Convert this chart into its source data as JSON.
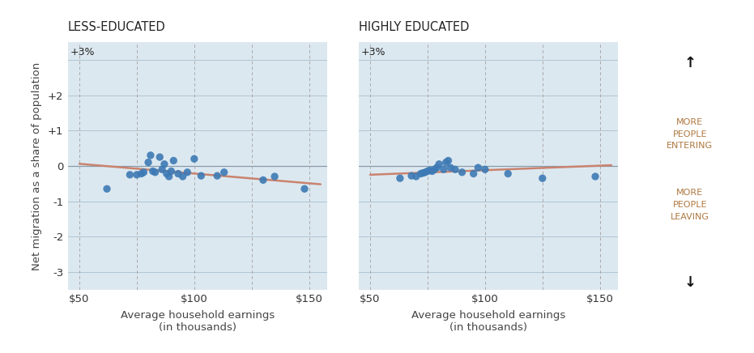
{
  "left_title": "LESS-EDUCATED",
  "right_title": "HIGHLY EDUCATED",
  "xlabel": "Average household earnings\n(in thousands)",
  "ylabel": "Net migration as a share of population",
  "ylim": [
    -3.5,
    3.5
  ],
  "xlim": [
    45,
    158
  ],
  "top_label": "+3%",
  "bg_color": "#dce8f0",
  "dot_color": "#3d7ab5",
  "line_color": "#c9836e",
  "annotation_color": "#b07840",
  "less_edu_x": [
    62,
    72,
    75,
    77,
    78,
    80,
    81,
    82,
    83,
    85,
    86,
    87,
    88,
    89,
    90,
    91,
    93,
    95,
    97,
    100,
    103,
    110,
    113,
    130,
    135,
    148
  ],
  "less_edu_y": [
    -0.65,
    -0.25,
    -0.25,
    -0.22,
    -0.18,
    0.1,
    0.3,
    -0.15,
    -0.18,
    0.25,
    -0.1,
    0.05,
    -0.22,
    -0.3,
    -0.15,
    0.15,
    -0.22,
    -0.3,
    -0.18,
    0.2,
    -0.28,
    -0.28,
    -0.18,
    -0.4,
    -0.3,
    -0.65
  ],
  "less_edu_trend_x": [
    50,
    155
  ],
  "less_edu_trend_y": [
    0.06,
    -0.52
  ],
  "high_edu_x": [
    63,
    68,
    70,
    72,
    73,
    74,
    75,
    76,
    77,
    78,
    79,
    80,
    82,
    83,
    84,
    85,
    87,
    90,
    95,
    97,
    100,
    110,
    125,
    148
  ],
  "high_edu_y": [
    -0.35,
    -0.28,
    -0.3,
    -0.22,
    -0.2,
    -0.18,
    -0.15,
    -0.12,
    -0.15,
    -0.1,
    -0.05,
    0.05,
    -0.1,
    0.1,
    0.15,
    -0.05,
    -0.1,
    -0.18,
    -0.22,
    -0.05,
    -0.1,
    -0.22,
    -0.35,
    -0.3
  ],
  "high_edu_trend_x": [
    50,
    155
  ],
  "high_edu_trend_y": [
    -0.25,
    0.02
  ],
  "more_entering_text": "MORE\nPEOPLE\nENTERING",
  "more_leaving_text": "MORE\nPEOPLE\nLEAVING",
  "ytick_vals": [
    -3,
    -2,
    -1,
    0,
    1,
    2
  ],
  "ytick_labels": [
    "-3",
    "-2",
    "-1",
    "0",
    "+1",
    "+2"
  ],
  "xtick_vals": [
    50,
    75,
    100,
    125,
    150
  ],
  "xtick_labels": [
    "$50",
    "",
    "$100",
    "",
    "$150"
  ]
}
